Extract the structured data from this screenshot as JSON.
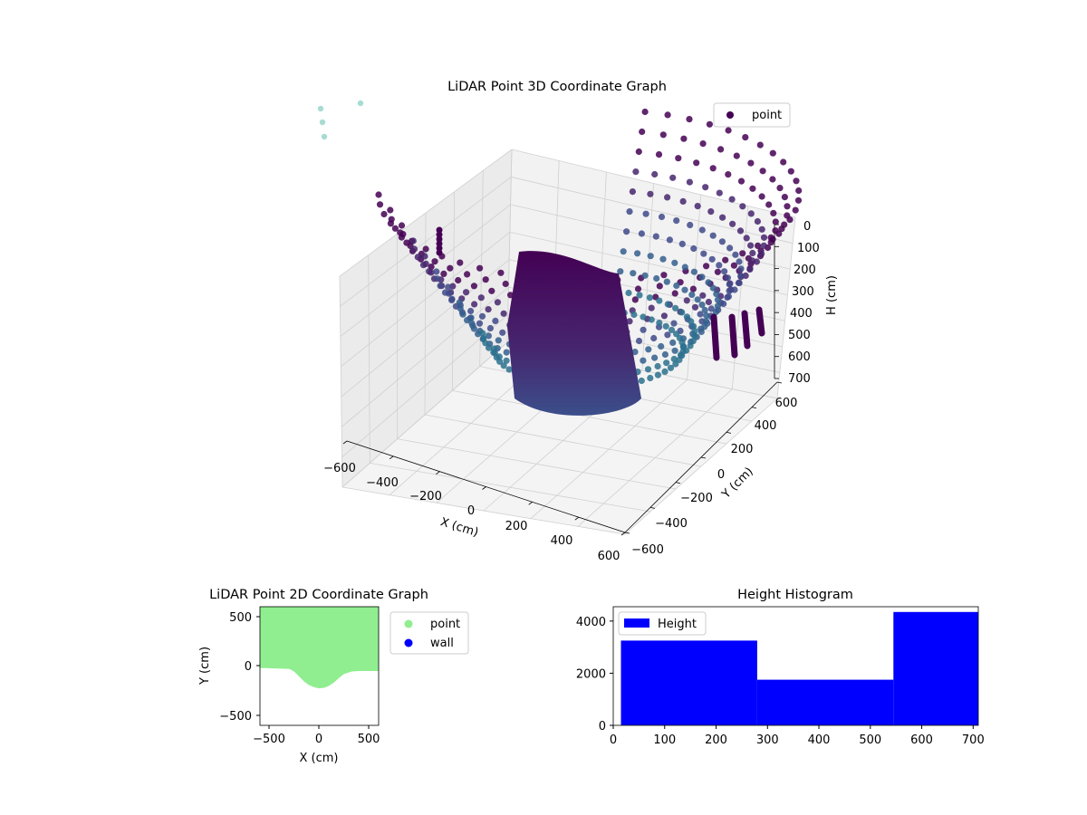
{
  "chart_data": [
    {
      "type": "scatter3d",
      "title": "LiDAR Point 3D Coordinate Graph",
      "xlabel": "X (cm)",
      "ylabel": "Y (cm)",
      "zlabel": "H (cm)",
      "xlim": [
        -600,
        600
      ],
      "ylim": [
        -600,
        600
      ],
      "zlim": [
        700,
        0
      ],
      "x_ticks": [
        "−600",
        "−400",
        "−200",
        "0",
        "200",
        "400",
        "600"
      ],
      "y_ticks": [
        "−600",
        "−400",
        "−200",
        "0",
        "200",
        "400",
        "600"
      ],
      "z_ticks": [
        "0",
        "100",
        "200",
        "300",
        "400",
        "500",
        "600",
        "700"
      ],
      "legend": [
        "point"
      ],
      "legend_position": "top-right",
      "colormap": "viridis",
      "grid": true
    },
    {
      "type": "scatter",
      "title": "LiDAR Point 2D Coordinate Graph",
      "xlabel": "X (cm)",
      "ylabel": "Y (cm)",
      "xlim": [
        -600,
        600
      ],
      "ylim": [
        -600,
        600
      ],
      "x_ticks": [
        "−500",
        "0",
        "500"
      ],
      "y_ticks": [
        "−500",
        "0",
        "500"
      ],
      "series": [
        {
          "name": "point",
          "color": "#90ee90"
        },
        {
          "name": "wall",
          "color": "#0000ff"
        }
      ],
      "point_region_boundary": {
        "x": [
          -600,
          -550,
          -300,
          -250,
          -200,
          -150,
          -100,
          -50,
          0,
          50,
          100,
          150,
          200,
          250,
          330,
          400,
          600
        ],
        "y": [
          -20,
          -20,
          -30,
          -60,
          -110,
          -160,
          -195,
          -215,
          -225,
          -220,
          -200,
          -165,
          -120,
          -80,
          -55,
          -50,
          -50
        ]
      },
      "legend_position": "upper-right-outside"
    },
    {
      "type": "bar",
      "title": "Height Histogram",
      "legend": [
        "Height"
      ],
      "legend_position": "top-left",
      "color": "#0000ff",
      "bins": [
        {
          "start": 15,
          "end": 280,
          "count": 3250
        },
        {
          "start": 280,
          "end": 545,
          "count": 1750
        },
        {
          "start": 545,
          "end": 710,
          "count": 4350
        }
      ],
      "xlim": [
        0,
        710
      ],
      "ylim": [
        0,
        4550
      ],
      "x_ticks": [
        "0",
        "100",
        "200",
        "300",
        "400",
        "500",
        "600",
        "700"
      ],
      "y_ticks": [
        "0",
        "2000",
        "4000"
      ]
    }
  ]
}
